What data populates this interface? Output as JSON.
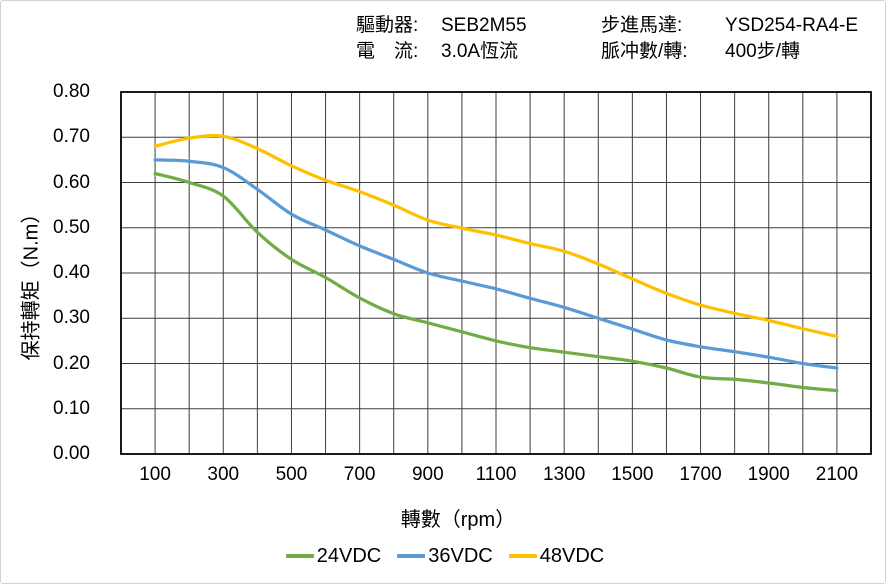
{
  "header": {
    "rows": [
      {
        "left_label": "驅動器:",
        "left_value": "SEB2M55",
        "right_label": "步進馬達:",
        "right_value": "YSD254-RA4-E"
      },
      {
        "left_label": "電　流:",
        "left_value": "3.0A恆流",
        "right_label": "脈冲數/轉:",
        "right_value": "400步/轉"
      }
    ]
  },
  "chart_data": {
    "type": "line",
    "title": "",
    "xlabel": "轉數（rpm）",
    "ylabel": "保持轉矩（N.m）",
    "xlim": [
      0,
      2200
    ],
    "ylim": [
      0,
      0.8
    ],
    "x_grid_step": 100,
    "y_grid_step": 0.1,
    "grid": true,
    "legend_position": "bottom",
    "x_ticks": [
      100,
      300,
      500,
      700,
      900,
      1100,
      1300,
      1500,
      1700,
      1900,
      2100
    ],
    "y_tick_labels": [
      "0.00",
      "0.10",
      "0.20",
      "0.30",
      "0.40",
      "0.50",
      "0.60",
      "0.70",
      "0.80"
    ],
    "x": [
      100,
      200,
      300,
      400,
      500,
      600,
      700,
      800,
      900,
      1000,
      1100,
      1200,
      1300,
      1400,
      1500,
      1600,
      1700,
      1800,
      1900,
      2000,
      2100
    ],
    "series": [
      {
        "name": "24VDC",
        "color": "#70AD47",
        "values": [
          0.62,
          0.6,
          0.57,
          0.49,
          0.43,
          0.39,
          0.345,
          0.31,
          0.29,
          0.27,
          0.25,
          0.235,
          0.225,
          0.215,
          0.205,
          0.19,
          0.17,
          0.165,
          0.157,
          0.147,
          0.14
        ]
      },
      {
        "name": "36VDC",
        "color": "#5B9BD5",
        "values": [
          0.65,
          0.647,
          0.633,
          0.585,
          0.53,
          0.495,
          0.46,
          0.43,
          0.4,
          0.382,
          0.365,
          0.344,
          0.324,
          0.3,
          0.276,
          0.252,
          0.237,
          0.226,
          0.214,
          0.2,
          0.19
        ]
      },
      {
        "name": "48VDC",
        "color": "#FFC000",
        "values": [
          0.68,
          0.698,
          0.702,
          0.675,
          0.637,
          0.605,
          0.58,
          0.55,
          0.517,
          0.499,
          0.484,
          0.465,
          0.448,
          0.42,
          0.387,
          0.355,
          0.329,
          0.311,
          0.295,
          0.277,
          0.26
        ]
      }
    ]
  }
}
